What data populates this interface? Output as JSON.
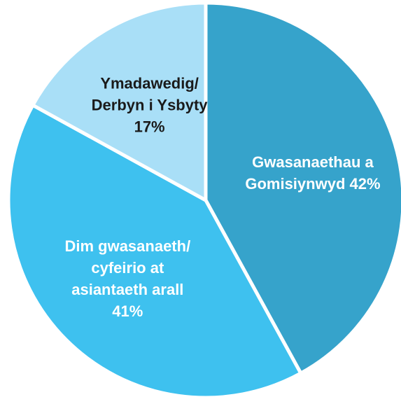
{
  "chart_data": {
    "type": "pie",
    "categories": [
      "Gwasanaethau a Gomisiynwyd",
      "Dim gwasanaeth/ cyfeirio at asiantaeth arall",
      "Ymadawedig/ Derbyn i Ysbyty"
    ],
    "values": [
      42,
      41,
      17
    ],
    "value_labels": [
      "42%",
      "41%",
      "17%"
    ],
    "colors": [
      "#36a3cb",
      "#3ec1ef",
      "#a9dff7"
    ],
    "label_colors": [
      "#ffffff",
      "#ffffff",
      "#1a1a1a"
    ]
  }
}
